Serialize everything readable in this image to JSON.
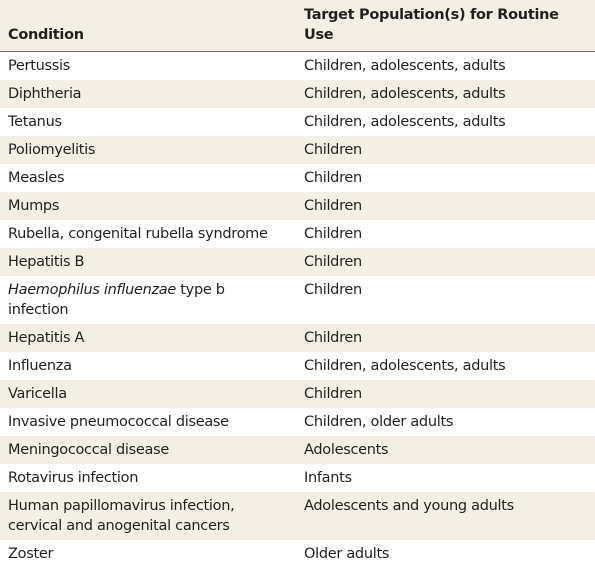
{
  "table": {
    "header": [
      "Condition",
      "Target Population(s) for Routine Use"
    ],
    "rows": [
      [
        "Pertussis",
        "Children, adolescents, adults"
      ],
      [
        "Diphtheria",
        "Children, adolescents, adults"
      ],
      [
        "Tetanus",
        "Children, adolescents, adults"
      ],
      [
        "Poliomyelitis",
        "Children"
      ],
      [
        "Measles",
        "Children"
      ],
      [
        "Mumps",
        "Children"
      ],
      [
        "Rubella, congenital rubella syndrome",
        "Children"
      ],
      [
        "Hepatitis B",
        "Children"
      ],
      [
        [
          {
            "text": "Haemophilus influenzae",
            "italic": true
          },
          {
            "text": " type b infection"
          }
        ],
        "Children"
      ],
      [
        "Hepatitis A",
        "Children"
      ],
      [
        "Influenza",
        "Children, adolescents, adults"
      ],
      [
        "Varicella",
        "Children"
      ],
      [
        "Invasive pneumococcal disease",
        "Children, older adults"
      ],
      [
        "Meningococcal disease",
        "Adolescents"
      ],
      [
        "Rotavirus infection",
        "Infants"
      ],
      [
        "Human papillomavirus infection, cervical and anogenital cancers",
        "Adolescents and young adults"
      ],
      [
        "Zoster",
        "Older adults"
      ]
    ]
  }
}
